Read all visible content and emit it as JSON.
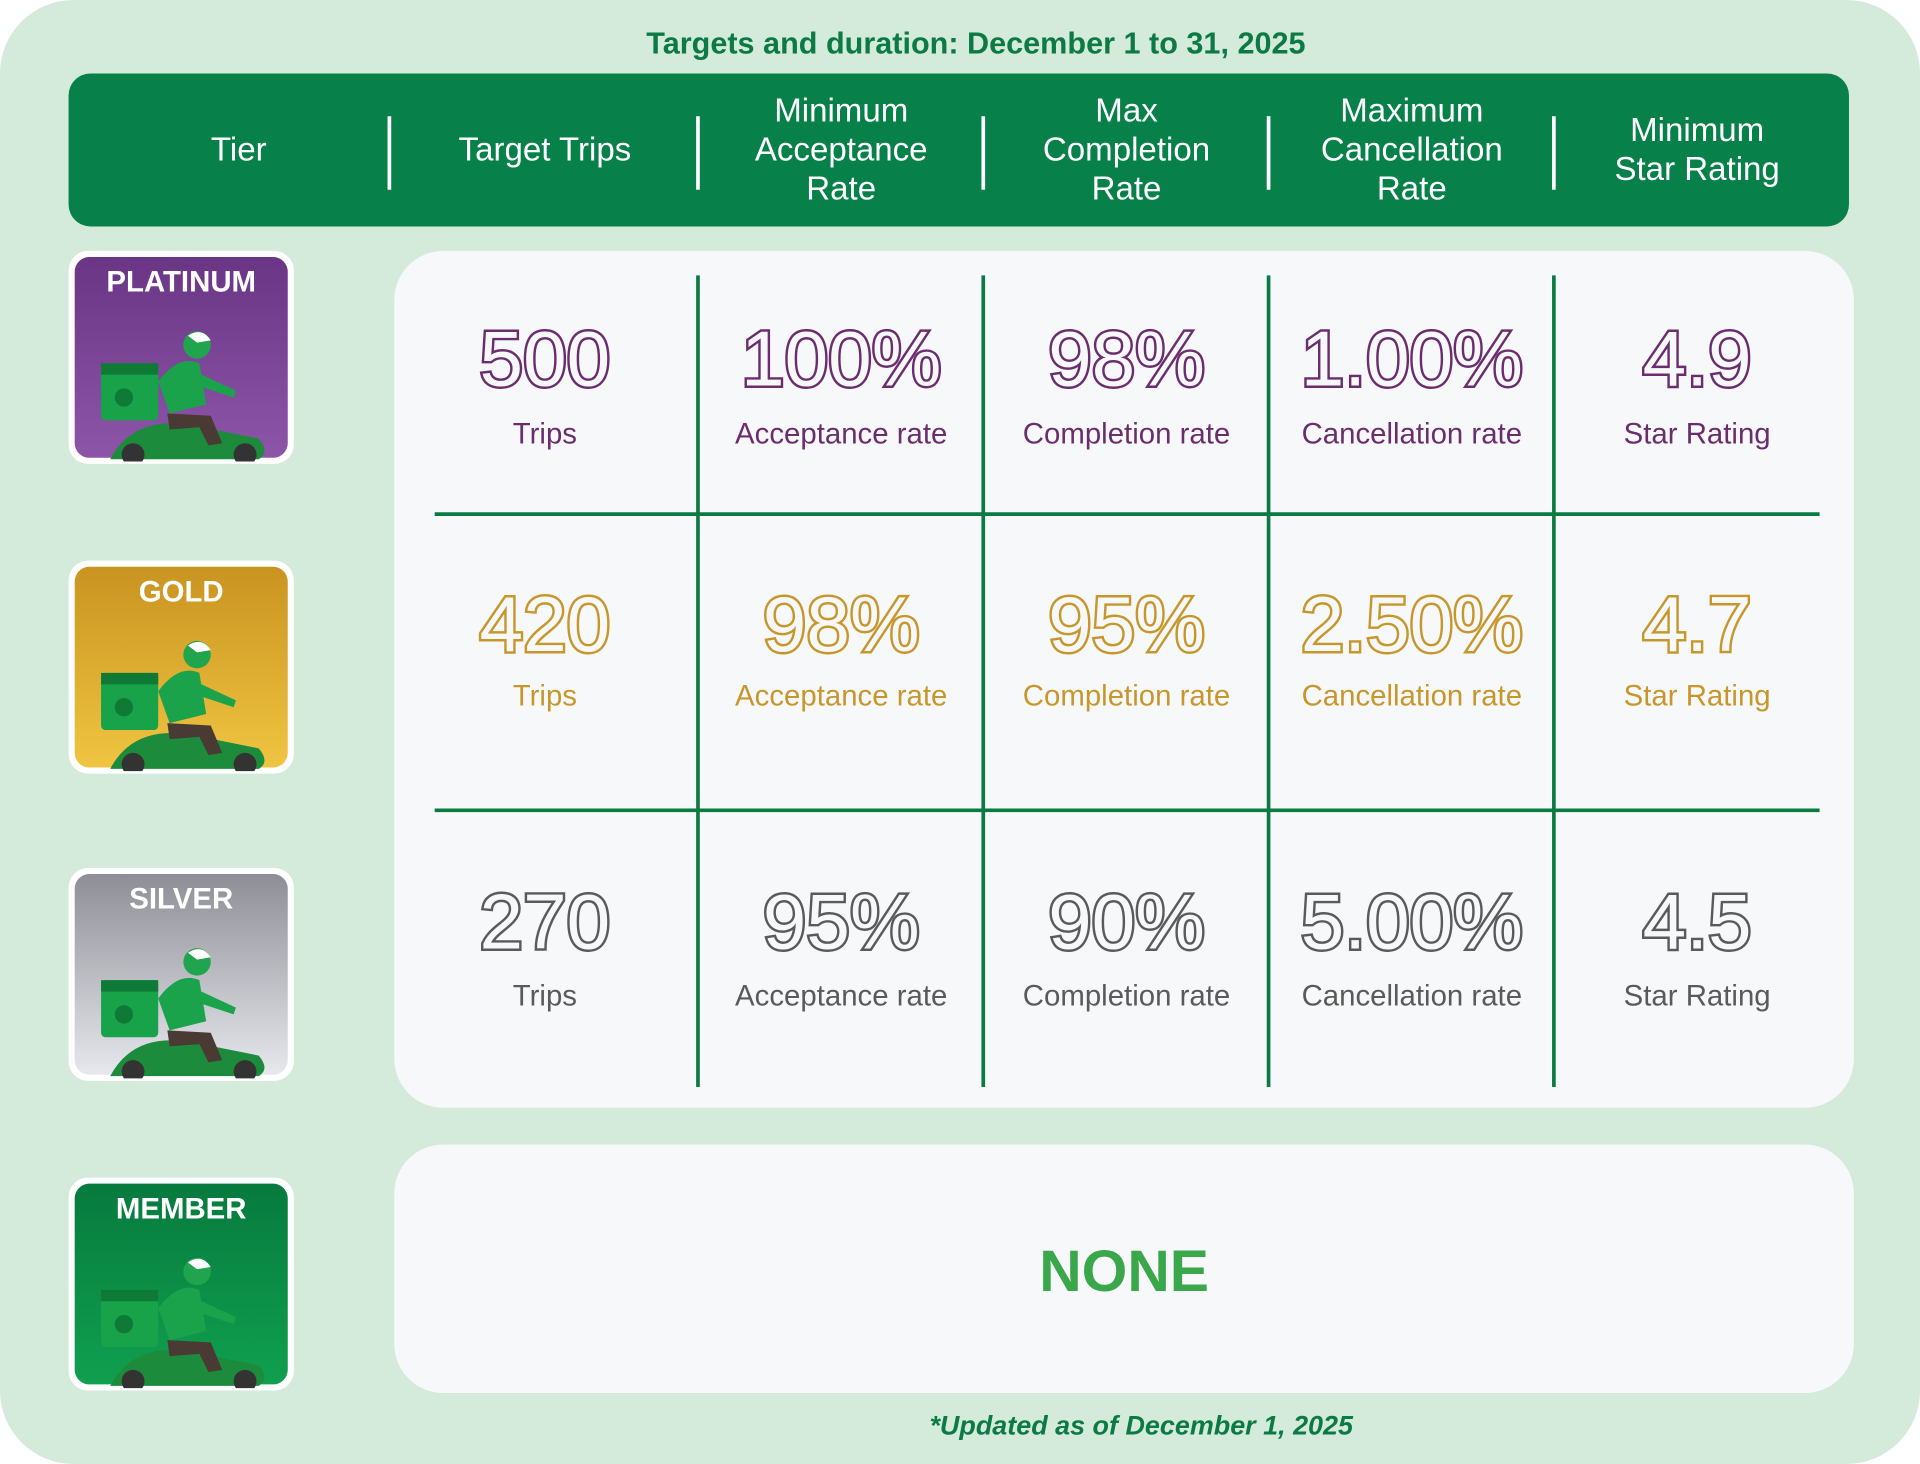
{
  "title": "Targets and duration: December 1 to 31, 2025",
  "header": [
    [
      "Tier"
    ],
    [
      "Target Trips"
    ],
    [
      "Minimum",
      "Acceptance",
      "Rate"
    ],
    [
      "Max",
      "Completion",
      "Rate"
    ],
    [
      "Maximum",
      "Cancellation",
      "Rate"
    ],
    [
      "Minimum",
      "Star Rating"
    ]
  ],
  "tiers": [
    {
      "name": "PLATINUM",
      "cells": [
        {
          "value": "500",
          "unit": "Trips"
        },
        {
          "value": "100%",
          "unit": "Acceptance rate"
        },
        {
          "value": "98%",
          "unit": "Completion rate"
        },
        {
          "value": "1.00%",
          "unit": "Cancellation rate"
        },
        {
          "value": "4.9",
          "unit": "Star Rating"
        }
      ]
    },
    {
      "name": "GOLD",
      "cells": [
        {
          "value": "420",
          "unit": "Trips"
        },
        {
          "value": "98%",
          "unit": "Acceptance rate"
        },
        {
          "value": "95%",
          "unit": "Completion rate"
        },
        {
          "value": "2.50%",
          "unit": "Cancellation rate"
        },
        {
          "value": "4.7",
          "unit": "Star Rating"
        }
      ]
    },
    {
      "name": "SILVER",
      "cells": [
        {
          "value": "270",
          "unit": "Trips"
        },
        {
          "value": "95%",
          "unit": "Acceptance rate"
        },
        {
          "value": "90%",
          "unit": "Completion rate"
        },
        {
          "value": "5.00%",
          "unit": "Cancellation rate"
        },
        {
          "value": "4.5",
          "unit": "Star Rating"
        }
      ]
    }
  ],
  "member": {
    "name": "MEMBER",
    "requirement": "NONE"
  },
  "footnote": "*Updated as of December 1, 2025"
}
